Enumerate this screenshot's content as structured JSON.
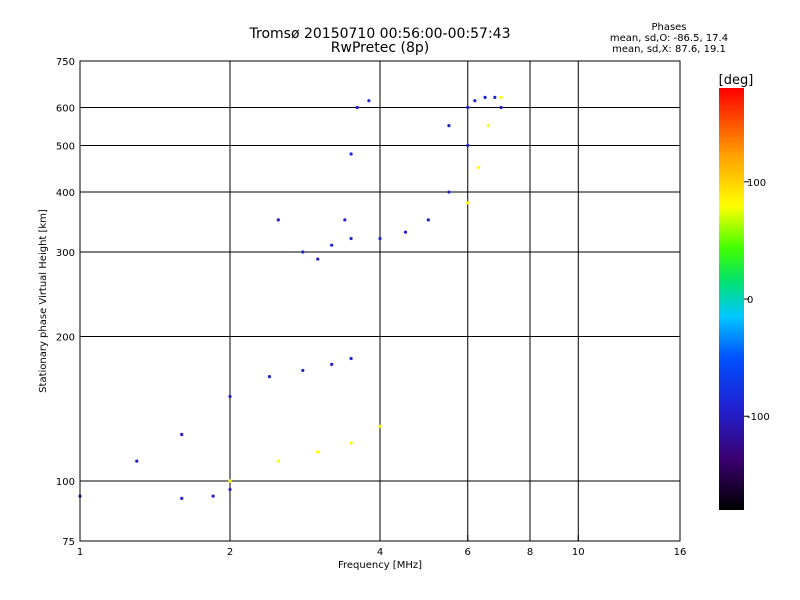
{
  "header": {
    "title": "Tromsø 20150710 00:56:00-00:57:43",
    "subtitle": "RwPretec (8p)",
    "stats": {
      "heading": "Phases",
      "line_o": "mean, sd,O: -86.5, 17.4",
      "line_x": "mean, sd,X: 87.6, 19.1"
    }
  },
  "chart_data": {
    "type": "scatter",
    "title": "Tromsø 20150710 00:56:00-00:57:43",
    "subtitle": "RwPretec (8p)",
    "xlabel": "Frequency [MHz]",
    "ylabel": "Stationary phase Virtual Height [km]",
    "xscale": "log",
    "yscale": "log",
    "xlim": [
      1,
      16
    ],
    "ylim": [
      75,
      750
    ],
    "xticks": [
      1,
      2,
      4,
      6,
      8,
      10,
      16
    ],
    "yticks": [
      75,
      100,
      200,
      300,
      400,
      500,
      600,
      750
    ],
    "grid": true,
    "colorbar": {
      "label": "[deg]",
      "ticks": [
        100,
        0,
        -100
      ],
      "range": [
        -180,
        180
      ],
      "palette": [
        "#000000",
        "#3a0060",
        "#2020d0",
        "#0050ff",
        "#00c8ff",
        "#00e060",
        "#40ff00",
        "#ffff00",
        "#ffa000",
        "#ff0000"
      ]
    },
    "traces": [
      {
        "name": "",
        "x": [
          1.0,
          1.6,
          1.85,
          2.0
        ],
        "y": [
          93,
          92,
          93,
          96
        ],
        "phase": -110
      },
      {
        "name": "",
        "x": [
          1.3,
          1.6,
          2.0,
          2.4,
          2.8,
          3.2,
          3.5
        ],
        "y": [
          110,
          125,
          150,
          165,
          170,
          175,
          180
        ],
        "phase": -105
      },
      {
        "name": "",
        "x": [
          2.0,
          2.5,
          3.0,
          3.5,
          4.0
        ],
        "y": [
          100,
          110,
          115,
          120,
          130
        ],
        "phase": 90
      },
      {
        "name": "",
        "x": [
          2.5,
          2.8,
          3.0,
          3.2,
          3.5,
          4.0,
          4.5,
          5.0,
          5.5,
          6.0
        ],
        "y": [
          350,
          300,
          290,
          310,
          320,
          320,
          330,
          350,
          400,
          500
        ],
        "phase": -100
      },
      {
        "name": "",
        "x": [
          3.4,
          3.5,
          3.6,
          3.8
        ],
        "y": [
          350,
          480,
          600,
          620
        ],
        "phase": -110
      },
      {
        "name": "",
        "x": [
          5.5,
          6.0,
          6.2,
          6.5,
          6.8,
          7.0
        ],
        "y": [
          550,
          600,
          620,
          630,
          630,
          600
        ],
        "phase": -95
      },
      {
        "name": "",
        "x": [
          6.0,
          6.3,
          6.6,
          7.0
        ],
        "y": [
          380,
          450,
          550,
          630
        ],
        "phase": 95
      }
    ]
  }
}
